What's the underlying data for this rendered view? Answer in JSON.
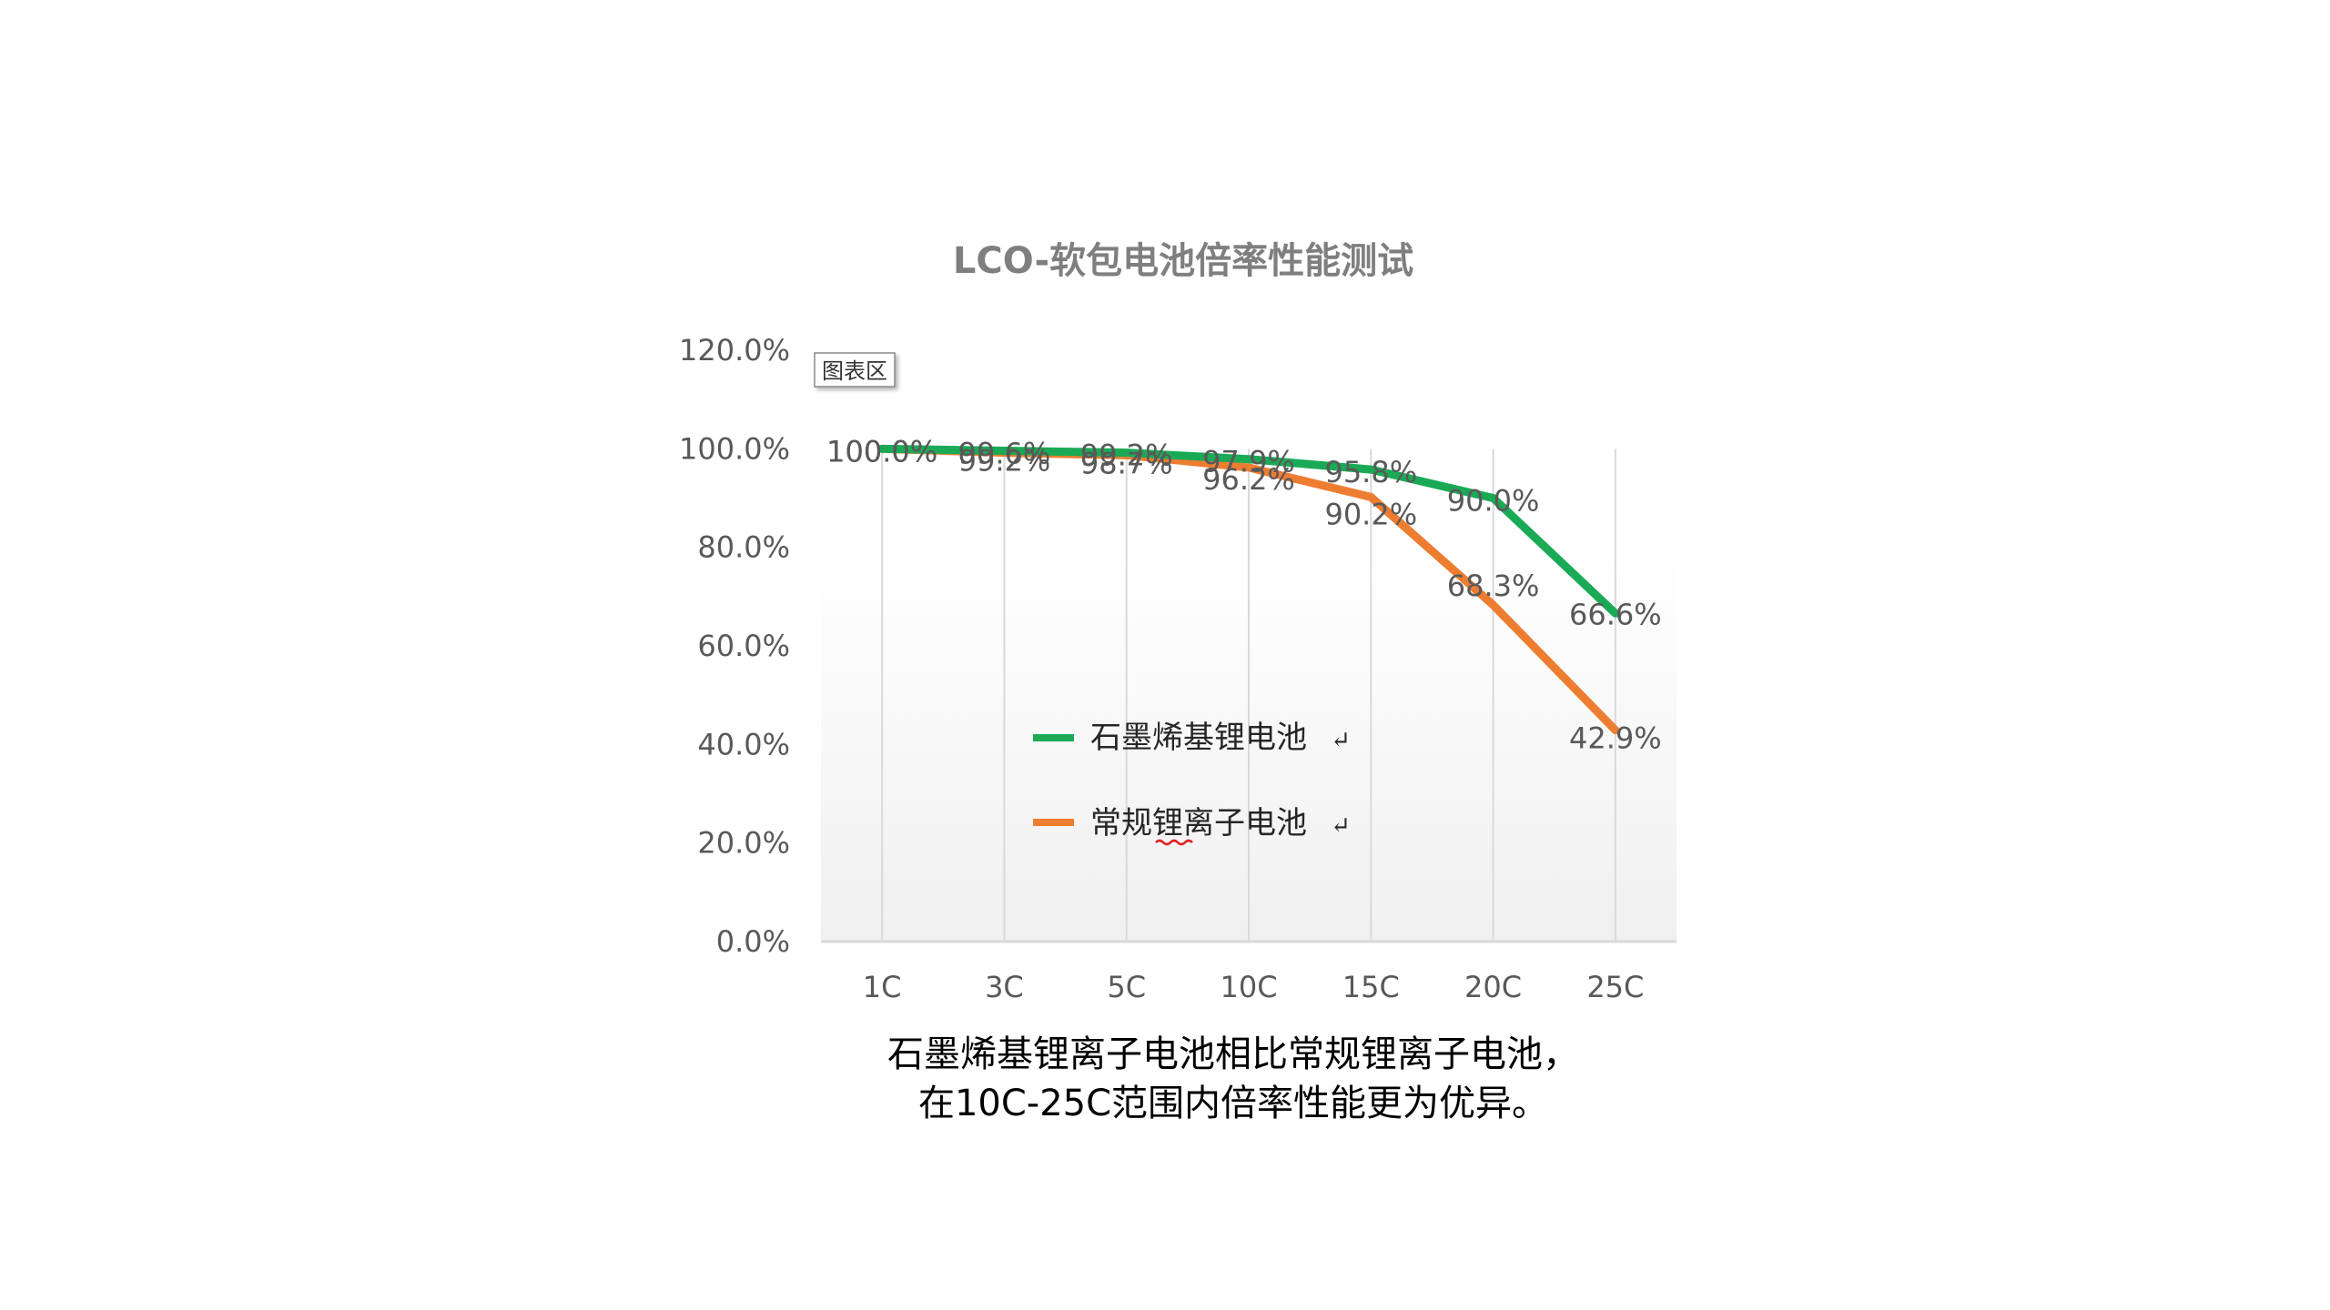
{
  "chart_data": {
    "type": "line",
    "title": "LCO-软包电池倍率性能测试",
    "categories": [
      "1C",
      "3C",
      "5C",
      "10C",
      "15C",
      "20C",
      "25C"
    ],
    "series": [
      {
        "name": "石墨烯基锂电池",
        "color": "#1aaa55",
        "values": [
          100.0,
          99.6,
          99.2,
          97.9,
          95.8,
          90.0,
          66.6
        ],
        "labels": [
          "100.0%",
          "99.6%",
          "99.2%",
          "97.9%",
          "95.8%",
          "90.0%",
          "66.6%"
        ]
      },
      {
        "name": "常规锂离子电池",
        "color": "#ed7d31",
        "values": [
          100.0,
          99.2,
          98.7,
          96.2,
          90.2,
          68.3,
          42.9
        ],
        "labels": [
          "100.0%",
          "99.2%",
          "98.7%",
          "96.2%",
          "90.2%",
          "68.3%",
          "42.9%"
        ]
      }
    ],
    "y_ticks": [
      "0.0%",
      "20.0%",
      "40.0%",
      "60.0%",
      "80.0%",
      "100.0%",
      "120.0%"
    ],
    "ylim": [
      0,
      120
    ],
    "grid": "vertical",
    "legend_position": "inside-center-left",
    "xlabel": "",
    "ylabel": ""
  },
  "tooltip": {
    "text": "图表区"
  },
  "caption": {
    "line1": "石墨烯基锂离子电池相比常规锂离子电池，",
    "line2": "在10C-25C范围内倍率性能更为优异。"
  },
  "legend_marks": {
    "return_symbol": "↵"
  }
}
